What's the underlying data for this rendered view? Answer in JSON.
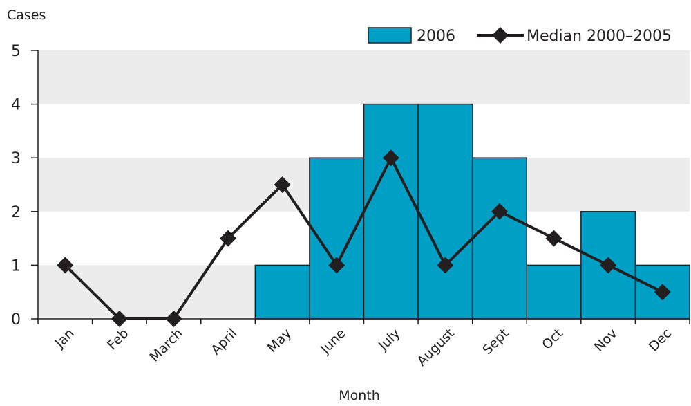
{
  "chart_data": {
    "type": "bar",
    "xlabel": "Month",
    "ylabel": "Cases",
    "ylim": [
      0,
      5
    ],
    "yticks": [
      0,
      1,
      2,
      3,
      4,
      5
    ],
    "categories": [
      "Jan",
      "Feb",
      "March",
      "April",
      "May",
      "June",
      "July",
      "August",
      "Sept",
      "Oct",
      "Nov",
      "Dec"
    ],
    "series": [
      {
        "name": "2006",
        "kind": "bar",
        "color": "#00a0c6",
        "values": [
          0,
          0,
          0,
          0,
          1,
          3,
          4,
          4,
          3,
          1,
          2,
          1
        ]
      },
      {
        "name": "Median 2000–2005",
        "kind": "line-with-diamond-markers",
        "color": "#231f20",
        "values": [
          1,
          0,
          0,
          1.5,
          2.5,
          1,
          3,
          1,
          2,
          1.5,
          1,
          0.5
        ]
      }
    ],
    "grid": "alternating horizontal bands",
    "band_color": "#ececec",
    "legend_position": "top-right"
  }
}
